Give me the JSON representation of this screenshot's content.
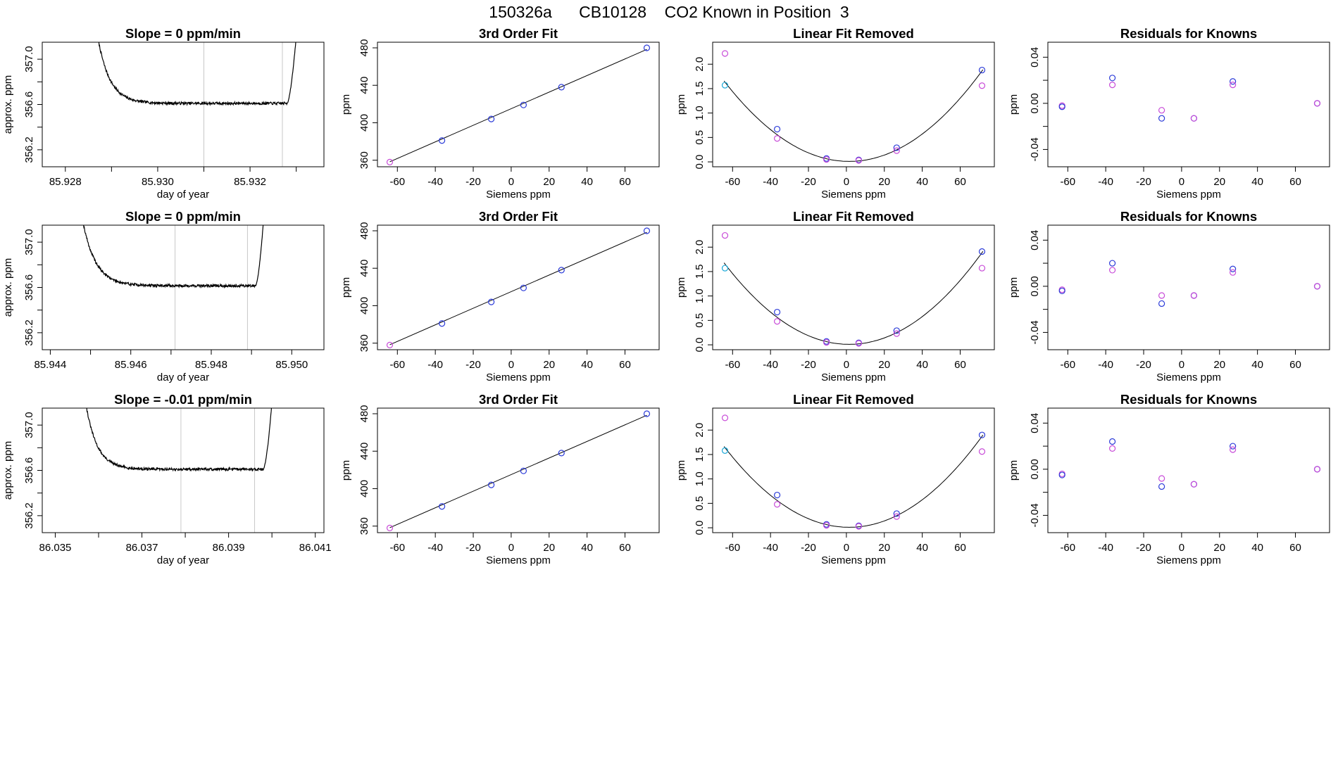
{
  "main_title": "150326a      CB10128    CO2 Known in Position  3",
  "colors": {
    "trace": "#000000",
    "marker_line": "#c8c8c8",
    "known_blue": "#2a3ad8",
    "known_magenta": "#c84bd8",
    "known_cyan": "#1aa8d8",
    "fit_line": "#000000",
    "frame": "#000000"
  },
  "chart_data": [
    {
      "type": "line",
      "panel": "timeseries",
      "row": 1,
      "title": "Slope =  0  ppm/min",
      "xlabel": "day of year",
      "ylabel": "approx. ppm",
      "xlim": [
        85.9275,
        85.9336
      ],
      "ylim": [
        356.05,
        357.15
      ],
      "xticks": [
        85.928,
        85.929,
        85.93,
        85.931,
        85.932,
        85.933
      ],
      "xtick_labels": [
        "85.928",
        "",
        "85.930",
        "",
        "85.932",
        ""
      ],
      "yticks": [
        356.2,
        356.4,
        356.6,
        356.8,
        357.0
      ],
      "ytick_labels": [
        "356.2",
        "",
        "356.6",
        "",
        "357.0"
      ],
      "markers": [
        85.931,
        85.9327
      ],
      "trace": {
        "start": 85.9287,
        "end": 85.933,
        "plateau_start": 85.93,
        "plateau_end": 85.9328,
        "enter_level": 357.2,
        "level": 356.61,
        "exit_level": 357.2,
        "decay": 0.00026,
        "noise": 0.012,
        "seed": 7
      }
    },
    {
      "type": "scatter",
      "panel": "fit",
      "row": 1,
      "title": "3rd Order Fit",
      "xlabel": "Siemens ppm",
      "ylabel": "ppm",
      "xlim": [
        -70.5,
        78
      ],
      "ylim": [
        353,
        486
      ],
      "xticks": [
        -60,
        -40,
        -20,
        0,
        20,
        40,
        60
      ],
      "yticks": [
        360,
        400,
        440,
        480
      ],
      "points": [
        {
          "x": -64,
          "y": 358,
          "c": "known_magenta"
        },
        {
          "x": -36.5,
          "y": 381,
          "c": "known_blue"
        },
        {
          "x": -10.5,
          "y": 404,
          "c": "known_blue"
        },
        {
          "x": 6.5,
          "y": 419,
          "c": "known_blue"
        },
        {
          "x": 26.5,
          "y": 438,
          "c": "known_blue"
        },
        {
          "x": 71.5,
          "y": 480,
          "c": "known_blue"
        }
      ],
      "fit": {
        "kind": "line",
        "coef": [
          415.0,
          0.8857
        ]
      }
    },
    {
      "type": "scatter",
      "panel": "curvature",
      "row": 1,
      "title": "Linear Fit Removed",
      "xlabel": "Siemens ppm",
      "ylabel": "ppm",
      "xlim": [
        -70.5,
        78
      ],
      "ylim": [
        -0.1,
        2.45
      ],
      "xticks": [
        -60,
        -40,
        -20,
        0,
        20,
        40,
        60
      ],
      "yticks": [
        0.0,
        0.5,
        1.0,
        1.5,
        2.0
      ],
      "ytick_labels": [
        "0.0",
        "0.5",
        "1.0",
        "1.5",
        "2.0"
      ],
      "points": [
        {
          "x": -64,
          "y": 2.22,
          "c": "known_magenta"
        },
        {
          "x": -64,
          "y": 1.57,
          "c": "known_cyan"
        },
        {
          "x": -36.5,
          "y": 0.67,
          "c": "known_blue"
        },
        {
          "x": -36.5,
          "y": 0.48,
          "c": "known_magenta"
        },
        {
          "x": -10.5,
          "y": 0.07,
          "c": "known_blue"
        },
        {
          "x": -10.5,
          "y": 0.05,
          "c": "known_magenta"
        },
        {
          "x": 6.5,
          "y": 0.04,
          "c": "known_blue"
        },
        {
          "x": 6.5,
          "y": 0.03,
          "c": "known_magenta"
        },
        {
          "x": 26.5,
          "y": 0.29,
          "c": "known_blue"
        },
        {
          "x": 26.5,
          "y": 0.23,
          "c": "known_magenta"
        },
        {
          "x": 71.5,
          "y": 1.88,
          "c": "known_blue"
        },
        {
          "x": 71.5,
          "y": 1.56,
          "c": "known_magenta"
        }
      ],
      "fit": {
        "kind": "parabola",
        "vertex_x": 1.5,
        "vertex_y": 0.01,
        "a": 0.000378,
        "x_range": [
          -64.5,
          72
        ]
      }
    },
    {
      "type": "scatter",
      "panel": "residuals",
      "row": 1,
      "title": "Residuals for Knowns",
      "xlabel": "Siemens ppm",
      "ylabel": "ppm",
      "xlim": [
        -70.5,
        78
      ],
      "ylim": [
        -0.055,
        0.053
      ],
      "xticks": [
        -60,
        -40,
        -20,
        0,
        20,
        40,
        60
      ],
      "yticks": [
        -0.04,
        -0.02,
        0.0,
        0.02,
        0.04
      ],
      "ytick_labels": [
        "-0.04",
        "",
        "0.00",
        "",
        "0.04"
      ],
      "points": [
        {
          "x": -63,
          "y": -0.002,
          "c": "known_magenta"
        },
        {
          "x": -63,
          "y": -0.003,
          "c": "known_blue"
        },
        {
          "x": -36.5,
          "y": 0.022,
          "c": "known_blue"
        },
        {
          "x": -36.5,
          "y": 0.016,
          "c": "known_magenta"
        },
        {
          "x": -10.5,
          "y": -0.006,
          "c": "known_magenta"
        },
        {
          "x": -10.5,
          "y": -0.013,
          "c": "known_blue"
        },
        {
          "x": 6.5,
          "y": -0.013,
          "c": "known_blue"
        },
        {
          "x": 6.5,
          "y": -0.013,
          "c": "known_magenta"
        },
        {
          "x": 27,
          "y": 0.019,
          "c": "known_blue"
        },
        {
          "x": 27,
          "y": 0.016,
          "c": "known_magenta"
        },
        {
          "x": 71.5,
          "y": 0.0,
          "c": "known_blue"
        },
        {
          "x": 71.5,
          "y": 0.0,
          "c": "known_magenta"
        }
      ]
    },
    {
      "type": "line",
      "panel": "timeseries",
      "row": 2,
      "title": "Slope =  0  ppm/min",
      "xlabel": "day of year",
      "ylabel": "approx. ppm",
      "xlim": [
        85.9438,
        85.9508
      ],
      "ylim": [
        356.05,
        357.15
      ],
      "xticks": [
        85.944,
        85.945,
        85.946,
        85.947,
        85.948,
        85.949,
        85.95
      ],
      "xtick_labels": [
        "85.944",
        "",
        "85.946",
        "",
        "85.948",
        "",
        "85.950"
      ],
      "yticks": [
        356.2,
        356.4,
        356.6,
        356.8,
        357.0
      ],
      "ytick_labels": [
        "356.2",
        "",
        "356.6",
        "",
        "357.0"
      ],
      "markers": [
        85.9471,
        85.9489
      ],
      "trace": {
        "start": 85.9448,
        "end": 85.9493,
        "plateau_start": 85.9461,
        "plateau_end": 85.9491,
        "enter_level": 357.2,
        "level": 356.615,
        "exit_level": 357.2,
        "decay": 0.00032,
        "noise": 0.012,
        "seed": 19
      }
    },
    {
      "type": "scatter",
      "panel": "fit",
      "row": 2,
      "title": "3rd Order Fit",
      "xlabel": "Siemens ppm",
      "ylabel": "ppm",
      "xlim": [
        -70.5,
        78
      ],
      "ylim": [
        353,
        486
      ],
      "xticks": [
        -60,
        -40,
        -20,
        0,
        20,
        40,
        60
      ],
      "yticks": [
        360,
        400,
        440,
        480
      ],
      "points": [
        {
          "x": -64,
          "y": 358,
          "c": "known_magenta"
        },
        {
          "x": -36.5,
          "y": 381,
          "c": "known_blue"
        },
        {
          "x": -10.5,
          "y": 404,
          "c": "known_blue"
        },
        {
          "x": 6.5,
          "y": 419,
          "c": "known_blue"
        },
        {
          "x": 26.5,
          "y": 438,
          "c": "known_blue"
        },
        {
          "x": 71.5,
          "y": 480,
          "c": "known_blue"
        }
      ],
      "fit": {
        "kind": "line",
        "coef": [
          415.0,
          0.8857
        ]
      }
    },
    {
      "type": "scatter",
      "panel": "curvature",
      "row": 2,
      "title": "Linear Fit Removed",
      "xlabel": "Siemens ppm",
      "ylabel": "ppm",
      "xlim": [
        -70.5,
        78
      ],
      "ylim": [
        -0.1,
        2.45
      ],
      "xticks": [
        -60,
        -40,
        -20,
        0,
        20,
        40,
        60
      ],
      "yticks": [
        0.0,
        0.5,
        1.0,
        1.5,
        2.0
      ],
      "ytick_labels": [
        "0.0",
        "0.5",
        "1.0",
        "1.5",
        "2.0"
      ],
      "points": [
        {
          "x": -64,
          "y": 2.24,
          "c": "known_magenta"
        },
        {
          "x": -64,
          "y": 1.57,
          "c": "known_cyan"
        },
        {
          "x": -36.5,
          "y": 0.67,
          "c": "known_blue"
        },
        {
          "x": -36.5,
          "y": 0.48,
          "c": "known_magenta"
        },
        {
          "x": -10.5,
          "y": 0.07,
          "c": "known_blue"
        },
        {
          "x": -10.5,
          "y": 0.05,
          "c": "known_magenta"
        },
        {
          "x": 6.5,
          "y": 0.04,
          "c": "known_blue"
        },
        {
          "x": 6.5,
          "y": 0.03,
          "c": "known_magenta"
        },
        {
          "x": 26.5,
          "y": 0.29,
          "c": "known_blue"
        },
        {
          "x": 26.5,
          "y": 0.23,
          "c": "known_magenta"
        },
        {
          "x": 71.5,
          "y": 1.91,
          "c": "known_blue"
        },
        {
          "x": 71.5,
          "y": 1.57,
          "c": "known_magenta"
        }
      ],
      "fit": {
        "kind": "parabola",
        "vertex_x": 1.5,
        "vertex_y": 0.01,
        "a": 0.000383,
        "x_range": [
          -64.5,
          72
        ]
      }
    },
    {
      "type": "scatter",
      "panel": "residuals",
      "row": 2,
      "title": "Residuals for Knowns",
      "xlabel": "Siemens ppm",
      "ylabel": "ppm",
      "xlim": [
        -70.5,
        78
      ],
      "ylim": [
        -0.055,
        0.053
      ],
      "xticks": [
        -60,
        -40,
        -20,
        0,
        20,
        40,
        60
      ],
      "yticks": [
        -0.04,
        -0.02,
        0.0,
        0.02,
        0.04
      ],
      "ytick_labels": [
        "-0.04",
        "",
        "0.00",
        "",
        "0.04"
      ],
      "points": [
        {
          "x": -63,
          "y": -0.003,
          "c": "known_magenta"
        },
        {
          "x": -63,
          "y": -0.004,
          "c": "known_blue"
        },
        {
          "x": -36.5,
          "y": 0.02,
          "c": "known_blue"
        },
        {
          "x": -36.5,
          "y": 0.014,
          "c": "known_magenta"
        },
        {
          "x": -10.5,
          "y": -0.008,
          "c": "known_magenta"
        },
        {
          "x": -10.5,
          "y": -0.015,
          "c": "known_blue"
        },
        {
          "x": 6.5,
          "y": -0.008,
          "c": "known_blue"
        },
        {
          "x": 6.5,
          "y": -0.008,
          "c": "known_magenta"
        },
        {
          "x": 27,
          "y": 0.015,
          "c": "known_blue"
        },
        {
          "x": 27,
          "y": 0.012,
          "c": "known_magenta"
        },
        {
          "x": 71.5,
          "y": 0.0,
          "c": "known_blue"
        },
        {
          "x": 71.5,
          "y": 0.0,
          "c": "known_magenta"
        }
      ]
    },
    {
      "type": "line",
      "panel": "timeseries",
      "row": 3,
      "title": "Slope =  -0.01  ppm/min",
      "xlabel": "day of year",
      "ylabel": "approx. ppm",
      "xlim": [
        86.0347,
        86.0412
      ],
      "ylim": [
        356.05,
        357.15
      ],
      "xticks": [
        86.035,
        86.036,
        86.037,
        86.038,
        86.039,
        86.04,
        86.041
      ],
      "xtick_labels": [
        "86.035",
        "",
        "86.037",
        "",
        "86.039",
        "",
        "86.041"
      ],
      "yticks": [
        356.2,
        356.4,
        356.6,
        356.8,
        357.0
      ],
      "ytick_labels": [
        "356.2",
        "",
        "356.6",
        "",
        "357.0"
      ],
      "markers": [
        86.0379,
        86.0396
      ],
      "trace": {
        "start": 86.0357,
        "end": 86.04,
        "plateau_start": 86.0367,
        "plateau_end": 86.0398,
        "enter_level": 357.2,
        "level": 356.61,
        "exit_level": 357.2,
        "decay": 0.00026,
        "noise": 0.012,
        "seed": 31
      }
    },
    {
      "type": "scatter",
      "panel": "fit",
      "row": 3,
      "title": "3rd Order Fit",
      "xlabel": "Siemens ppm",
      "ylabel": "ppm",
      "xlim": [
        -70.5,
        78
      ],
      "ylim": [
        353,
        486
      ],
      "xticks": [
        -60,
        -40,
        -20,
        0,
        20,
        40,
        60
      ],
      "yticks": [
        360,
        400,
        440,
        480
      ],
      "points": [
        {
          "x": -64,
          "y": 358,
          "c": "known_magenta"
        },
        {
          "x": -36.5,
          "y": 381,
          "c": "known_blue"
        },
        {
          "x": -10.5,
          "y": 404,
          "c": "known_blue"
        },
        {
          "x": 6.5,
          "y": 419,
          "c": "known_blue"
        },
        {
          "x": 26.5,
          "y": 438,
          "c": "known_blue"
        },
        {
          "x": 71.5,
          "y": 480,
          "c": "known_blue"
        }
      ],
      "fit": {
        "kind": "line",
        "coef": [
          415.0,
          0.8857
        ]
      }
    },
    {
      "type": "scatter",
      "panel": "curvature",
      "row": 3,
      "title": "Linear Fit Removed",
      "xlabel": "Siemens ppm",
      "ylabel": "ppm",
      "xlim": [
        -70.5,
        78
      ],
      "ylim": [
        -0.1,
        2.45
      ],
      "xticks": [
        -60,
        -40,
        -20,
        0,
        20,
        40,
        60
      ],
      "yticks": [
        0.0,
        0.5,
        1.0,
        1.5,
        2.0
      ],
      "ytick_labels": [
        "0.0",
        "0.5",
        "1.0",
        "1.5",
        "2.0"
      ],
      "points": [
        {
          "x": -64,
          "y": 2.25,
          "c": "known_magenta"
        },
        {
          "x": -64,
          "y": 1.58,
          "c": "known_cyan"
        },
        {
          "x": -36.5,
          "y": 0.67,
          "c": "known_blue"
        },
        {
          "x": -36.5,
          "y": 0.48,
          "c": "known_magenta"
        },
        {
          "x": -10.5,
          "y": 0.07,
          "c": "known_blue"
        },
        {
          "x": -10.5,
          "y": 0.05,
          "c": "known_magenta"
        },
        {
          "x": 6.5,
          "y": 0.04,
          "c": "known_blue"
        },
        {
          "x": 6.5,
          "y": 0.03,
          "c": "known_magenta"
        },
        {
          "x": 26.5,
          "y": 0.29,
          "c": "known_blue"
        },
        {
          "x": 26.5,
          "y": 0.23,
          "c": "known_magenta"
        },
        {
          "x": 71.5,
          "y": 1.9,
          "c": "known_blue"
        },
        {
          "x": 71.5,
          "y": 1.56,
          "c": "known_magenta"
        }
      ],
      "fit": {
        "kind": "parabola",
        "vertex_x": 1.5,
        "vertex_y": 0.01,
        "a": 0.00038,
        "x_range": [
          -64.5,
          72
        ]
      }
    },
    {
      "type": "scatter",
      "panel": "residuals",
      "row": 3,
      "title": "Residuals for Knowns",
      "xlabel": "Siemens ppm",
      "ylabel": "ppm",
      "xlim": [
        -70.5,
        78
      ],
      "ylim": [
        -0.055,
        0.053
      ],
      "xticks": [
        -60,
        -40,
        -20,
        0,
        20,
        40,
        60
      ],
      "yticks": [
        -0.04,
        -0.02,
        0.0,
        0.02,
        0.04
      ],
      "ytick_labels": [
        "-0.04",
        "",
        "0.00",
        "",
        "0.04"
      ],
      "points": [
        {
          "x": -63,
          "y": -0.004,
          "c": "known_magenta"
        },
        {
          "x": -63,
          "y": -0.005,
          "c": "known_blue"
        },
        {
          "x": -36.5,
          "y": 0.024,
          "c": "known_blue"
        },
        {
          "x": -36.5,
          "y": 0.018,
          "c": "known_magenta"
        },
        {
          "x": -10.5,
          "y": -0.008,
          "c": "known_magenta"
        },
        {
          "x": -10.5,
          "y": -0.015,
          "c": "known_blue"
        },
        {
          "x": 6.5,
          "y": -0.013,
          "c": "known_blue"
        },
        {
          "x": 6.5,
          "y": -0.013,
          "c": "known_magenta"
        },
        {
          "x": 27,
          "y": 0.02,
          "c": "known_blue"
        },
        {
          "x": 27,
          "y": 0.017,
          "c": "known_magenta"
        },
        {
          "x": 71.5,
          "y": 0.0,
          "c": "known_blue"
        },
        {
          "x": 71.5,
          "y": 0.0,
          "c": "known_magenta"
        }
      ]
    }
  ]
}
